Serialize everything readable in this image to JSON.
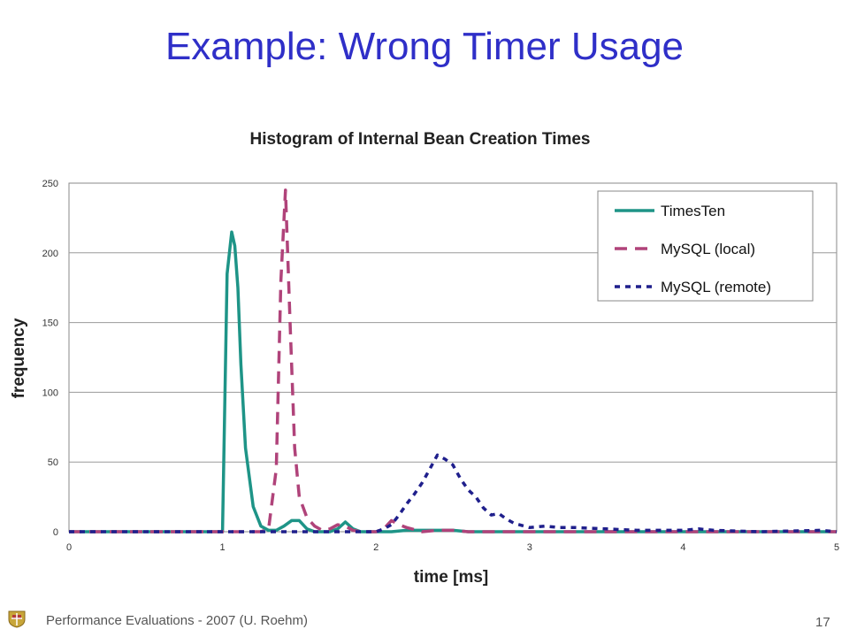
{
  "slide": {
    "title": "Example: Wrong Timer Usage",
    "footer": "Performance Evaluations - 2007 (U. Roehm)",
    "page_number": "17"
  },
  "chart_data": {
    "type": "line",
    "title": "Histogram of Internal Bean Creation Times",
    "xlabel": "time [ms]",
    "ylabel": "frequency",
    "xlim": [
      0,
      5
    ],
    "ylim": [
      0,
      250
    ],
    "xticks": [
      0,
      1,
      2,
      3,
      4,
      5
    ],
    "yticks": [
      0,
      50,
      100,
      150,
      200,
      250
    ],
    "grid": "horizontal",
    "legend": "top-right",
    "series": [
      {
        "name": "TimesTen",
        "color": "#1e9487",
        "style": "solid",
        "x": [
          0,
          0.95,
          1.0,
          1.03,
          1.06,
          1.08,
          1.1,
          1.12,
          1.15,
          1.2,
          1.25,
          1.3,
          1.35,
          1.4,
          1.45,
          1.5,
          1.55,
          1.6,
          1.7,
          1.75,
          1.8,
          1.85,
          1.9,
          2.0,
          2.1,
          2.2,
          2.4,
          2.5,
          2.6,
          3.0,
          4.0,
          5.0
        ],
        "y": [
          0,
          0,
          0,
          185,
          215,
          205,
          175,
          120,
          60,
          18,
          4,
          1,
          1,
          4,
          8,
          8,
          2,
          0,
          0,
          2,
          7,
          2,
          0,
          0,
          0,
          1,
          1,
          1,
          0,
          0,
          0,
          0
        ]
      },
      {
        "name": "MySQL (local)",
        "color": "#b0437a",
        "style": "dashed",
        "x": [
          0,
          1.25,
          1.3,
          1.35,
          1.38,
          1.41,
          1.44,
          1.47,
          1.5,
          1.55,
          1.6,
          1.65,
          1.7,
          1.75,
          1.8,
          1.85,
          1.9,
          2.0,
          2.05,
          2.1,
          2.15,
          2.2,
          2.3,
          2.4,
          2.5,
          2.6,
          3.0,
          4.0,
          5.0
        ],
        "y": [
          0,
          0,
          2,
          45,
          180,
          245,
          150,
          60,
          25,
          10,
          4,
          1,
          2,
          5,
          4,
          1,
          0,
          0,
          2,
          8,
          5,
          3,
          0,
          1,
          1,
          0,
          0,
          0,
          0
        ]
      },
      {
        "name": "MySQL (remote)",
        "color": "#1f1f8c",
        "style": "dotted",
        "x": [
          0,
          1.8,
          2.0,
          2.05,
          2.1,
          2.15,
          2.2,
          2.25,
          2.3,
          2.35,
          2.4,
          2.45,
          2.5,
          2.55,
          2.6,
          2.65,
          2.7,
          2.75,
          2.8,
          2.85,
          2.9,
          3.0,
          3.1,
          3.2,
          3.3,
          3.5,
          3.7,
          4.0,
          4.1,
          4.2,
          4.5,
          4.9,
          5.0
        ],
        "y": [
          0,
          0,
          0,
          2,
          5,
          12,
          20,
          27,
          35,
          45,
          55,
          52,
          48,
          38,
          30,
          25,
          17,
          12,
          13,
          9,
          6,
          3,
          4,
          3,
          3,
          2,
          1,
          1,
          2,
          1,
          0,
          1,
          0
        ]
      }
    ]
  }
}
